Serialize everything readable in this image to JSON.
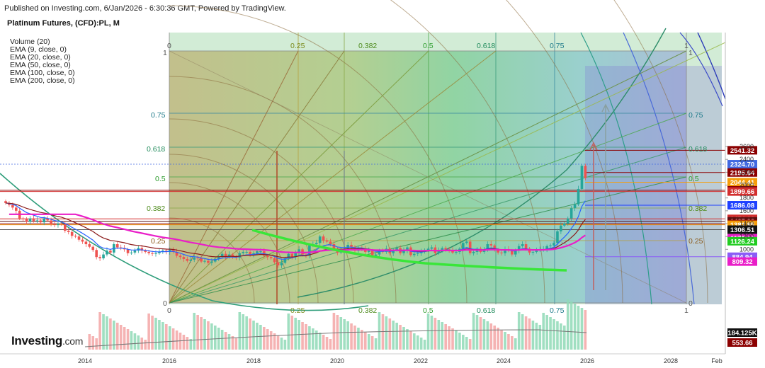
{
  "header": {
    "published": "Published on Investing.com, 6/Jan/2026 - 6:30:36 GMT, Powered by TradingView."
  },
  "chart_title": "Platinum Futures, (CFD):PL, M",
  "indicators": [
    "Volume (20)",
    "EMA (9, close, 0)",
    "EMA (20, close, 0)",
    "EMA (50, close, 0)",
    "EMA (100, close, 0)",
    "EMA (200, close, 0)"
  ],
  "logo": {
    "name": "Investing",
    "suffix": ".com"
  },
  "colors": {
    "up": "#26a69a",
    "down": "#ef5350",
    "ema9": "#2962ff",
    "ema20": "#8b1a1a",
    "ema50": "#e91ec8",
    "trend": "#39e639",
    "fan": "#2e9d5f",
    "bg_box": "#6a5acd"
  },
  "chart_data": {
    "type": "candlestick",
    "period": "M",
    "x_ticks": [
      "2014",
      "2016",
      "2018",
      "2020",
      "2022",
      "2024",
      "2026",
      "2028",
      "Feb"
    ],
    "y_ticks": [
      1000,
      1200,
      1400,
      1600,
      1800,
      2000,
      2200,
      2400,
      2600
    ],
    "ylim": [
      780,
      2700
    ],
    "price_tags": [
      {
        "value": "2541.32",
        "color": "#8b0000"
      },
      {
        "value": "2324.70",
        "color": "#4169e1"
      },
      {
        "value": "2195.64",
        "color": "#8b0000"
      },
      {
        "value": "2044.41",
        "color": "#f59e0b"
      },
      {
        "value": "1918.38",
        "color": "#8b0000"
      },
      {
        "value": "1899.66",
        "color": "#d32f2f"
      },
      {
        "value": "1686.08",
        "color": "#1e40ff"
      },
      {
        "value": "1474.02",
        "color": "#d32f2f"
      },
      {
        "value": "1435.98",
        "color": "#5a1010"
      },
      {
        "value": "1397.36",
        "color": "#8b0000"
      },
      {
        "value": "1381.85",
        "color": "#f59e0b"
      },
      {
        "value": "1306.51",
        "color": "#111111"
      },
      {
        "value": "1173.44",
        "color": "#e91ec8"
      },
      {
        "value": "1126.24",
        "color": "#22cc22"
      },
      {
        "value": "884.94",
        "color": "#8b5cf6"
      },
      {
        "value": "809.32",
        "color": "#e91ec8"
      }
    ],
    "volume_tags": [
      {
        "value": "184.125K",
        "color": "#111111"
      },
      {
        "value": "553.66",
        "color": "#8b0000"
      }
    ],
    "fib_top": [
      "0",
      "0.25",
      "0.382",
      "0.5",
      "0.618",
      "0.75",
      "1"
    ],
    "fib_bottom": [
      "0",
      "0.25",
      "0.382",
      "0.5",
      "0.618",
      "0.75",
      "1"
    ],
    "fib_left": [
      "1",
      "0.75",
      "0.618",
      "0.5",
      "0.382",
      "0.25",
      "0"
    ],
    "fib_right": [
      "1",
      "0.75",
      "0.618",
      "0.5",
      "0.382",
      "0.25",
      "0"
    ],
    "close_series": [
      1720,
      1690,
      1650,
      1600,
      1480,
      1470,
      1430,
      1480,
      1440,
      1450,
      1420,
      1480,
      1450,
      1390,
      1380,
      1400,
      1390,
      1290,
      1270,
      1210,
      1200,
      1150,
      1120,
      1080,
      1040,
      990,
      880,
      860,
      920,
      980,
      950,
      1080,
      1030,
      1020,
      1000,
      940,
      950,
      980,
      1020,
      980,
      960,
      940,
      930,
      940,
      960,
      980,
      960,
      990,
      960,
      900,
      880,
      850,
      820,
      840,
      870,
      860,
      810,
      820,
      790,
      810,
      850,
      890,
      930,
      880,
      920,
      880,
      870,
      940,
      960,
      960,
      920,
      940,
      970,
      970,
      900,
      880,
      860,
      800,
      750,
      790,
      860,
      930,
      880,
      940,
      1000,
      920,
      900,
      1060,
      1080,
      1100,
      1200,
      1140,
      1120,
      1080,
      1010,
      950,
      1000,
      1010,
      1070,
      1040,
      980,
      1020,
      1010,
      960,
      980,
      900,
      920,
      970,
      960,
      1010,
      940,
      990,
      1020,
      940,
      980,
      1030,
      910,
      930,
      940,
      960,
      990,
      1010,
      1030,
      940,
      980,
      1020,
      1000,
      990,
      950,
      960,
      1010,
      1100,
      1120,
      940,
      960,
      1010,
      960,
      1000,
      1080,
      1060,
      990,
      950,
      940,
      1000,
      980,
      920,
      980,
      1050,
      1080,
      1010,
      950,
      960,
      990,
      1000,
      1000,
      1050,
      1060,
      1100,
      1280,
      1370,
      1400,
      1480,
      1640,
      1700,
      1940,
      2300,
      2110
    ]
  }
}
